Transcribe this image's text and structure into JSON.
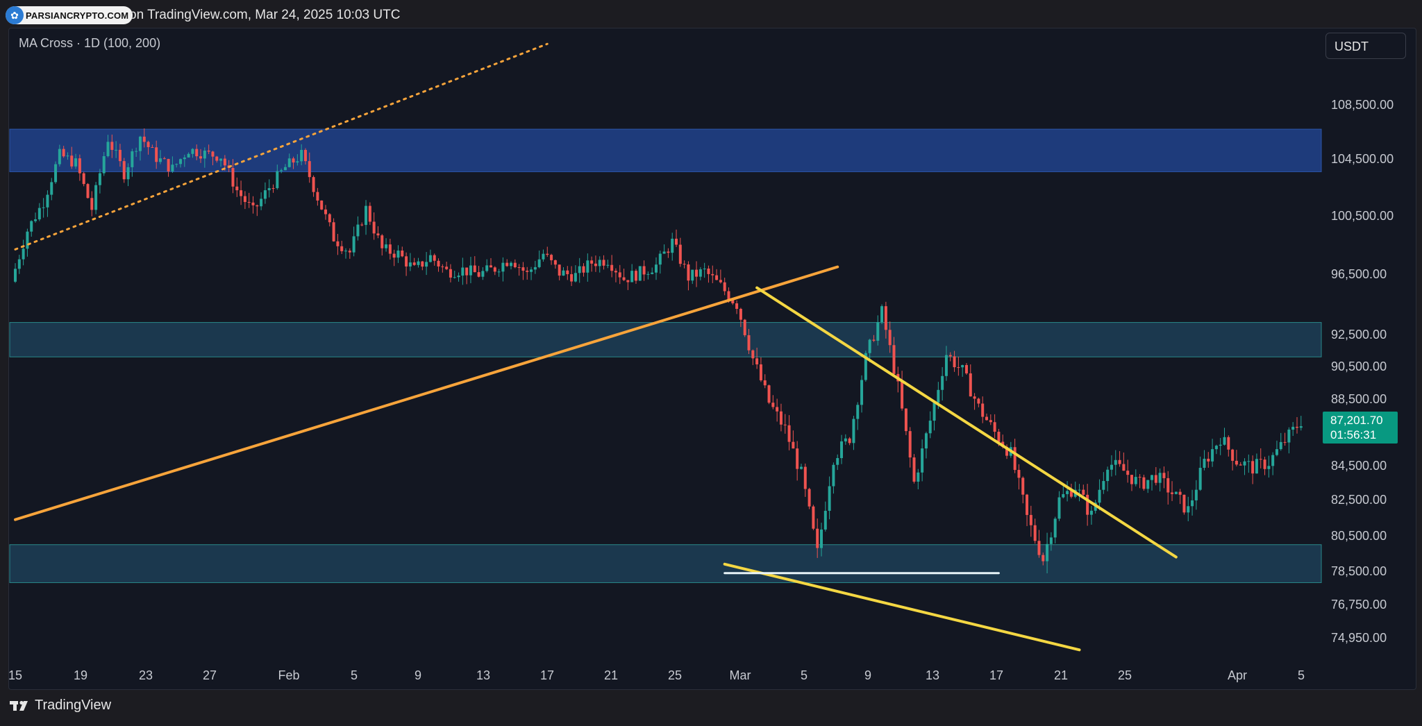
{
  "header": {
    "watermark_logo": "PARSIANCRYPTO.COM",
    "publish_text": "on TradingView.com, Mar 24, 2025 10:03 UTC"
  },
  "chart_header": {
    "indicator": "MA Cross · 1D (100, 200)",
    "currency": "USDT"
  },
  "price_tag": {
    "price": "87,201.70",
    "countdown": "01:56:31",
    "color": "#089981"
  },
  "footer": {
    "brand": "TradingView"
  },
  "colors": {
    "background": "#131722",
    "up_candle": "#26a69a",
    "down_candle": "#ef5350",
    "orange_trend": "#f7a43b",
    "yellow_wedge": "#f4d743",
    "zone_blue": "#1e3b7a",
    "zone_teal": "#1b3a4e"
  },
  "chart_data": {
    "type": "candlestick",
    "title": "",
    "y_ticks": [
      "108,500.00",
      "104,500.00",
      "100,500.00",
      "96,500.00",
      "92,500.00",
      "90,500.00",
      "88,500.00",
      "84,500.00",
      "82,500.00",
      "80,500.00",
      "78,500.00",
      "76,750.00",
      "74,950.00"
    ],
    "x_ticks": [
      "15",
      "19",
      "23",
      "27",
      "Feb",
      "5",
      "9",
      "13",
      "17",
      "21",
      "25",
      "Mar",
      "5",
      "9",
      "13",
      "17",
      "21",
      "25",
      "Apr",
      "5"
    ],
    "zones": [
      {
        "name": "upper-resistance",
        "from": 103600,
        "to": 106700
      },
      {
        "name": "middle-zone",
        "from": 91100,
        "to": 93300
      },
      {
        "name": "lower-support",
        "from": 77900,
        "to": 80000
      }
    ],
    "trendlines": [
      {
        "name": "orange-ascending",
        "from": [
          "Jan 15",
          81400
        ],
        "to": [
          "Mar 7",
          97000
        ]
      },
      {
        "name": "orange-dotted",
        "from": [
          "Jan 15",
          98200
        ],
        "to": [
          "Feb 17",
          113000
        ]
      },
      {
        "name": "wedge-upper",
        "from": [
          "Mar 2",
          95600
        ],
        "to": [
          "Mar 28",
          79300
        ]
      },
      {
        "name": "wedge-lower",
        "from": [
          "Feb 28",
          78900
        ],
        "to": [
          "Mar 22",
          74300
        ]
      },
      {
        "name": "support-line",
        "from": [
          "Feb 28",
          78400
        ],
        "to": [
          "Mar 17",
          78400
        ]
      }
    ],
    "last_price": 87201.7
  }
}
